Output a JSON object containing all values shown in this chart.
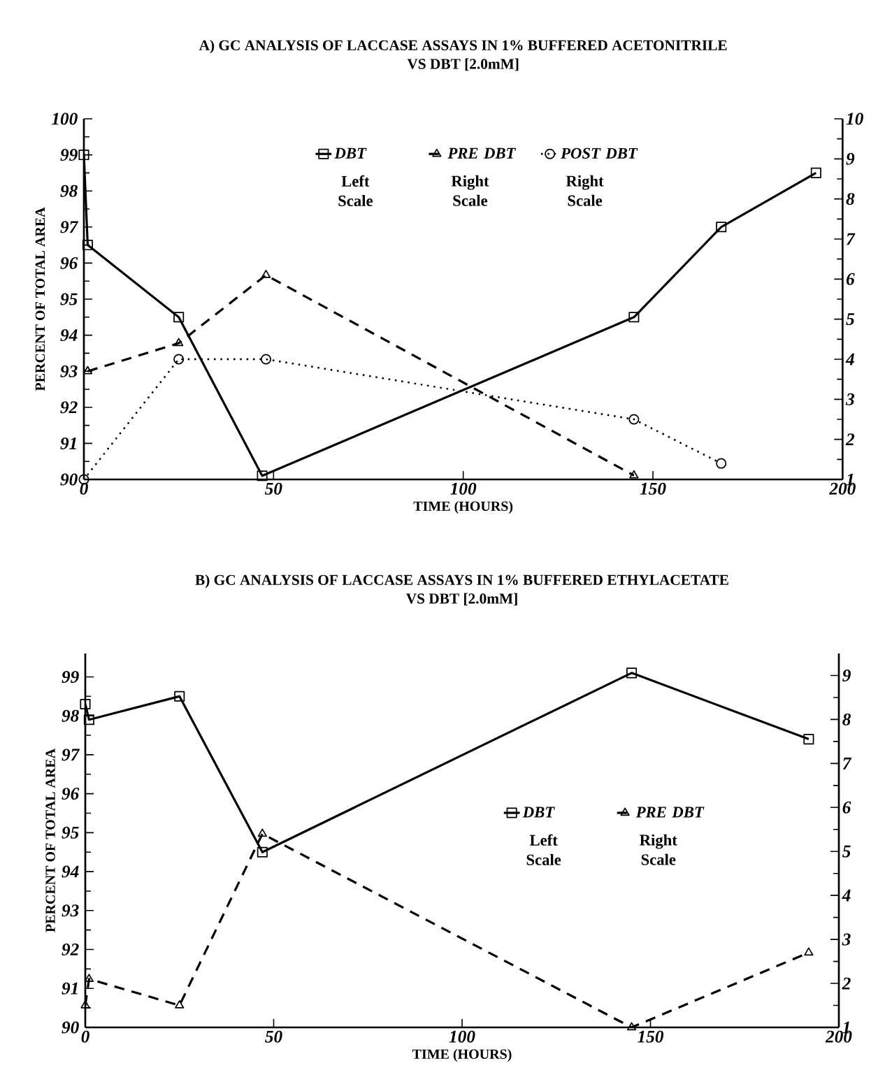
{
  "chart_data": [
    {
      "type": "line",
      "title": "A) GC ANALYSIS OF LACCASE ASSAYS IN 1% BUFFERED ACETONITRILE",
      "subtitle": "VS DBT [2.0mM]",
      "xlabel": "TIME (HOURS)",
      "ylabel": "PERCENT OF TOTAL AREA",
      "xlim": [
        0,
        200
      ],
      "xticks": [
        0,
        50,
        100,
        150,
        200
      ],
      "ylim": [
        90,
        100
      ],
      "yticks": [
        90,
        91,
        92,
        93,
        94,
        95,
        96,
        97,
        98,
        99,
        100
      ],
      "y2lim": [
        1,
        10
      ],
      "y2ticks": [
        1,
        2,
        3,
        4,
        5,
        6,
        7,
        8,
        9,
        10
      ],
      "legend": "top",
      "annotations": [
        "Left Scale",
        "Right Scale",
        "Right Scale"
      ],
      "series": [
        {
          "name": "DBT",
          "color": "#000000",
          "marker": "square",
          "line_style": "solid",
          "x": [
            0,
            1,
            25,
            47,
            145,
            168,
            193
          ],
          "values": [
            99.0,
            96.5,
            94.5,
            90.1,
            94.5,
            97.0,
            98.5
          ]
        },
        {
          "name": "PRE DBT",
          "color": "#000000",
          "marker": "triangle",
          "line_style": "dashed",
          "axis": "y2",
          "x": [
            1,
            25,
            48,
            145
          ],
          "values": [
            3.7,
            4.4,
            6.1,
            1.1
          ]
        },
        {
          "name": "POST DBT",
          "color": "#000000",
          "marker": "circle",
          "line_style": "dotted",
          "axis": "y2",
          "x": [
            0,
            25,
            48,
            145,
            168
          ],
          "values": [
            1.0,
            4.0,
            4.0,
            2.5,
            1.4
          ]
        }
      ]
    },
    {
      "type": "line",
      "title": "B) GC ANALYSIS OF LACCASE ASSAYS IN 1% BUFFERED ETHYLACETATE",
      "subtitle": "VS DBT [2.0mM]",
      "xlabel": "TIME (HOURS)",
      "ylabel": "PERCENT OF TOTAL AREA",
      "xlim": [
        0,
        200
      ],
      "xticks": [
        0,
        50,
        100,
        150,
        200
      ],
      "ylim": [
        90,
        99.6
      ],
      "yticks": [
        90,
        91,
        92,
        93,
        94,
        95,
        96,
        97,
        98,
        99
      ],
      "y2lim": [
        1,
        9.5
      ],
      "y2ticks": [
        1,
        2,
        3,
        4,
        5,
        6,
        7,
        8,
        9
      ],
      "legend": "right",
      "annotations": [
        "Left Scale",
        "Right Scale"
      ],
      "series": [
        {
          "name": "DBT",
          "color": "#000000",
          "marker": "square",
          "line_style": "solid",
          "x": [
            0,
            1,
            25,
            47,
            145,
            192
          ],
          "values": [
            98.3,
            97.9,
            98.5,
            94.5,
            99.1,
            97.4
          ]
        },
        {
          "name": "PRE DBT",
          "color": "#000000",
          "marker": "triangle",
          "line_style": "dashed",
          "axis": "y2",
          "x": [
            0,
            1,
            25,
            47,
            145,
            192
          ],
          "values": [
            1.5,
            2.1,
            1.5,
            5.4,
            1.0,
            2.7
          ]
        }
      ]
    }
  ]
}
